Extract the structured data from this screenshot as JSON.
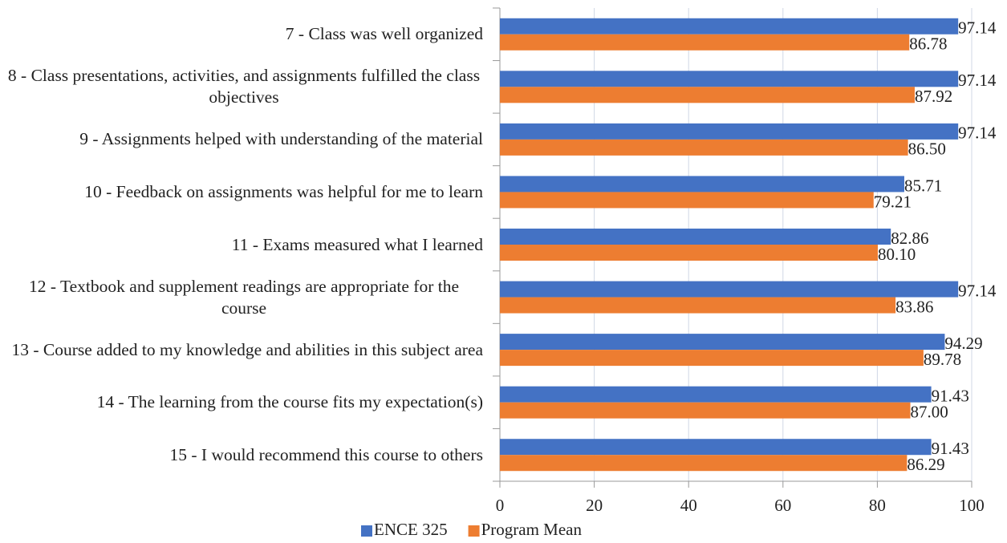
{
  "chart_data": {
    "type": "bar",
    "orientation": "horizontal",
    "categories": [
      "7 - Class was well organized",
      "8 - Class presentations, activities, and assignments fulfilled the class objectives",
      "9 - Assignments helped with understanding of the material",
      "10 - Feedback on assignments was helpful for me to learn",
      "11 - Exams measured what I learned",
      "12 - Textbook and supplement readings are appropriate for the course",
      "13 - Course added to my knowledge and abilities in this subject area",
      "14 - The learning from the course fits my expectation(s)",
      "15 - I would recommend this course to others"
    ],
    "series": [
      {
        "name": "ENCE 325",
        "color": "#4472c4",
        "values": [
          97.14,
          97.14,
          97.14,
          85.71,
          82.86,
          97.14,
          94.29,
          91.43,
          91.43
        ],
        "value_labels": [
          "97.14",
          "97.14",
          "97.14",
          "85.71",
          "82.86",
          "97.14",
          "94.29",
          "91.43",
          "91.43"
        ]
      },
      {
        "name": "Program Mean",
        "color": "#ed7d31",
        "values": [
          86.78,
          87.92,
          86.5,
          79.21,
          80.1,
          83.86,
          89.78,
          87.0,
          86.29
        ],
        "value_labels": [
          "86.78",
          "87.92",
          "86.50",
          "79.21",
          "80.10",
          "83.86",
          "89.78",
          "87.00",
          "86.29"
        ]
      }
    ],
    "xlim": [
      0,
      100
    ],
    "xticks": [
      0,
      20,
      40,
      60,
      80,
      100
    ],
    "grid": true,
    "legend": "bottom"
  }
}
